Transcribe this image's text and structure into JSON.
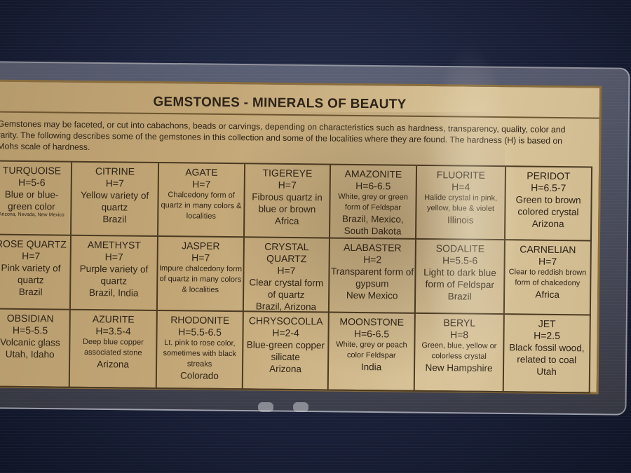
{
  "card": {
    "title": "GEMSTONES - MINERALS OF BEAUTY",
    "intro": "Gemstones may be faceted, or cut into cabachons, beads or carvings, depending on characteristics such as hardness, transparency, quality, color and rarity. The following describes some of the gemstones in this collection and some of the localities where they are found. The hardness (H) is based on Mohs scale of hardness.",
    "gemstones": [
      {
        "name": "TURQUOISE",
        "hardness": "H=5-6",
        "description": "Blue or blue-green color",
        "locality": "Arizona, Nevada, New Mexico"
      },
      {
        "name": "CITRINE",
        "hardness": "H=7",
        "description": "Yellow variety of quartz",
        "locality": "Brazil"
      },
      {
        "name": "AGATE",
        "hardness": "H=7",
        "description": "Chalcedony form of quartz in many colors & localities",
        "locality": ""
      },
      {
        "name": "TIGEREYE",
        "hardness": "H=7",
        "description": "Fibrous quartz in blue or brown",
        "locality": "Africa"
      },
      {
        "name": "AMAZONITE",
        "hardness": "H=6-6.5",
        "description": "White, grey or green form of Feldspar",
        "locality": "Brazil, Mexico, South Dakota"
      },
      {
        "name": "FLUORITE",
        "hardness": "H=4",
        "description": "Halide crystal in pink, yellow, blue & violet",
        "locality": "Illinois"
      },
      {
        "name": "PERIDOT",
        "hardness": "H=6.5-7",
        "description": "Green to brown colored crystal",
        "locality": "Arizona"
      },
      {
        "name": "ROSE QUARTZ",
        "hardness": "H=7",
        "description": "Pink variety of quartz",
        "locality": "Brazil"
      },
      {
        "name": "AMETHYST",
        "hardness": "H=7",
        "description": "Purple variety of quartz",
        "locality": "Brazil, India"
      },
      {
        "name": "JASPER",
        "hardness": "H=7",
        "description": "Impure chalcedony form of quartz in many colors & localities",
        "locality": ""
      },
      {
        "name": "CRYSTAL QUARTZ",
        "hardness": "H=7",
        "description": "Clear crystal form of quartz",
        "locality": "Brazil, Arizona"
      },
      {
        "name": "ALABASTER",
        "hardness": "H=2",
        "description": "Transparent form of gypsum",
        "locality": "New Mexico"
      },
      {
        "name": "SODALITE",
        "hardness": "H=5.5-6",
        "description": "Light to dark blue form of Feldspar",
        "locality": "Brazil"
      },
      {
        "name": "CARNELIAN",
        "hardness": "H=7",
        "description": "Clear to reddish brown form of chalcedony",
        "locality": "Africa"
      },
      {
        "name": "OBSIDIAN",
        "hardness": "H=5-5.5",
        "description": "Volcanic glass",
        "locality": "Utah, Idaho"
      },
      {
        "name": "AZURITE",
        "hardness": "H=3.5-4",
        "description": "Deep blue copper associated stone",
        "locality": "Arizona"
      },
      {
        "name": "RHODONITE",
        "hardness": "H=5.5-6.5",
        "description": "Lt. pink to rose color, sometimes with black streaks",
        "locality": "Colorado"
      },
      {
        "name": "CHRYSOCOLLA",
        "hardness": "H=2-4",
        "description": "Blue-green copper silicate",
        "locality": "Arizona"
      },
      {
        "name": "MOONSTONE",
        "hardness": "H=6-6.5",
        "description": "White, grey or peach color Feldspar",
        "locality": "India"
      },
      {
        "name": "BERYL",
        "hardness": "H=8",
        "description": "Green, blue, yellow or colorless crystal",
        "locality": "New Hampshire"
      },
      {
        "name": "JET",
        "hardness": "H=2.5",
        "description": "Black fossil wood, related to coal",
        "locality": "Utah"
      }
    ]
  }
}
